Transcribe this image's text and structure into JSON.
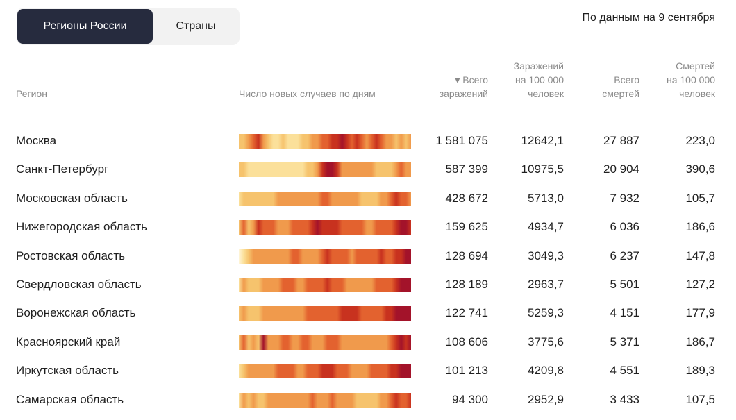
{
  "tabs": {
    "regions_label": "Регионы России",
    "countries_label": "Страны"
  },
  "date_note": "По данным на 9 сентября",
  "headers": {
    "region": "Регион",
    "daily": "Число новых случаев по дням",
    "total_cases_arrow": "▾",
    "total_cases_l1": "Всего",
    "total_cases_l2": "заражений",
    "per100k_cases_l1": "Заражений",
    "per100k_cases_l2": "на 100 000",
    "per100k_cases_l3": "человек",
    "total_deaths_l1": "Всего",
    "total_deaths_l2": "смертей",
    "per100k_deaths_l1": "Смертей",
    "per100k_deaths_l2": "на 100 000",
    "per100k_deaths_l3": "человек"
  },
  "colors": {
    "tab_active_bg": "#262b3e",
    "heat_scale": [
      "#fff5d9",
      "#fbe09a",
      "#f6c36d",
      "#f09a4c",
      "#e3622f",
      "#c8321f",
      "#a3132a"
    ]
  },
  "rows": [
    {
      "region": "Москва",
      "total": "1 581 075",
      "per100k": "12642,1",
      "deaths": "27 887",
      "deaths_per100k": "223,0",
      "heat": [
        2,
        2,
        3,
        4,
        5,
        3,
        2,
        1,
        1,
        2,
        1,
        1,
        1,
        2,
        2,
        3,
        3,
        4,
        4,
        5,
        5,
        6,
        5,
        4,
        5,
        4,
        3,
        4,
        5,
        4,
        3,
        3,
        2,
        3,
        2,
        3
      ]
    },
    {
      "region": "Санкт-Петербург",
      "total": "587 399",
      "per100k": "10975,5",
      "deaths": "20 904",
      "deaths_per100k": "390,6",
      "heat": [
        2,
        2,
        1,
        1,
        1,
        1,
        1,
        1,
        1,
        1,
        1,
        1,
        1,
        1,
        2,
        2,
        3,
        5,
        6,
        6,
        5,
        3,
        3,
        3,
        3,
        3,
        3,
        3,
        2,
        2,
        2,
        2,
        3,
        4,
        3,
        3
      ]
    },
    {
      "region": "Московская область",
      "total": "428 672",
      "per100k": "5713,0",
      "deaths": "7 932",
      "deaths_per100k": "105,7",
      "heat": [
        1,
        2,
        2,
        2,
        2,
        2,
        2,
        2,
        3,
        3,
        3,
        3,
        3,
        3,
        3,
        3,
        3,
        4,
        4,
        3,
        3,
        3,
        3,
        3,
        3,
        2,
        2,
        2,
        2,
        3,
        3,
        4,
        5,
        4,
        4,
        3
      ]
    },
    {
      "region": "Нижегородская область",
      "total": "159 625",
      "per100k": "4934,7",
      "deaths": "6 036",
      "deaths_per100k": "186,6",
      "heat": [
        2,
        4,
        2,
        3,
        5,
        4,
        4,
        4,
        3,
        3,
        3,
        4,
        4,
        4,
        4,
        5,
        6,
        5,
        5,
        5,
        5,
        4,
        4,
        4,
        4,
        4,
        3,
        3,
        4,
        4,
        4,
        4,
        5,
        6,
        6,
        5
      ]
    },
    {
      "region": "Ростовская область",
      "total": "128 694",
      "per100k": "3049,3",
      "deaths": "6 237",
      "deaths_per100k": "147,8",
      "heat": [
        0,
        1,
        2,
        3,
        3,
        3,
        3,
        3,
        3,
        3,
        3,
        4,
        4,
        3,
        3,
        3,
        3,
        4,
        5,
        4,
        4,
        4,
        4,
        3,
        4,
        4,
        4,
        4,
        4,
        5,
        4,
        4,
        5,
        5,
        6,
        6
      ]
    },
    {
      "region": "Свердловская область",
      "total": "128 189",
      "per100k": "2963,7",
      "deaths": "5 501",
      "deaths_per100k": "127,2",
      "heat": [
        1,
        3,
        2,
        2,
        2,
        3,
        3,
        3,
        3,
        4,
        4,
        4,
        3,
        3,
        4,
        4,
        4,
        4,
        5,
        4,
        4,
        4,
        3,
        3,
        3,
        3,
        3,
        3,
        4,
        4,
        4,
        4,
        5,
        6,
        6,
        6
      ]
    },
    {
      "region": "Воронежская область",
      "total": "122 741",
      "per100k": "5259,3",
      "deaths": "4 151",
      "deaths_per100k": "177,9",
      "heat": [
        2,
        3,
        2,
        2,
        2,
        3,
        3,
        3,
        3,
        3,
        3,
        3,
        3,
        3,
        4,
        4,
        4,
        4,
        4,
        4,
        4,
        5,
        5,
        5,
        5,
        4,
        4,
        4,
        4,
        4,
        5,
        5,
        6,
        6,
        6,
        6
      ]
    },
    {
      "region": "Красноярский край",
      "total": "108 606",
      "per100k": "3775,6",
      "deaths": "5 371",
      "deaths_per100k": "186,7",
      "heat": [
        2,
        4,
        2,
        3,
        2,
        6,
        3,
        3,
        3,
        4,
        4,
        3,
        3,
        4,
        4,
        3,
        3,
        3,
        4,
        4,
        4,
        3,
        3,
        3,
        3,
        3,
        3,
        3,
        3,
        3,
        3,
        4,
        5,
        6,
        5,
        6
      ]
    },
    {
      "region": "Иркутская область",
      "total": "101 213",
      "per100k": "4209,8",
      "deaths": "4 551",
      "deaths_per100k": "189,3",
      "heat": [
        1,
        2,
        3,
        3,
        3,
        3,
        3,
        3,
        4,
        4,
        4,
        4,
        3,
        3,
        4,
        4,
        4,
        5,
        5,
        5,
        4,
        4,
        4,
        3,
        3,
        3,
        3,
        4,
        4,
        4,
        4,
        5,
        5,
        6,
        6,
        6
      ]
    },
    {
      "region": "Самарская область",
      "total": "94 300",
      "per100k": "2952,9",
      "deaths": "3 433",
      "deaths_per100k": "107,5",
      "heat": [
        1,
        3,
        2,
        3,
        2,
        2,
        3,
        3,
        3,
        3,
        3,
        3,
        3,
        3,
        3,
        4,
        3,
        3,
        3,
        4,
        3,
        3,
        3,
        3,
        2,
        2,
        2,
        2,
        2,
        3,
        3,
        4,
        5,
        4,
        4,
        5
      ]
    }
  ]
}
